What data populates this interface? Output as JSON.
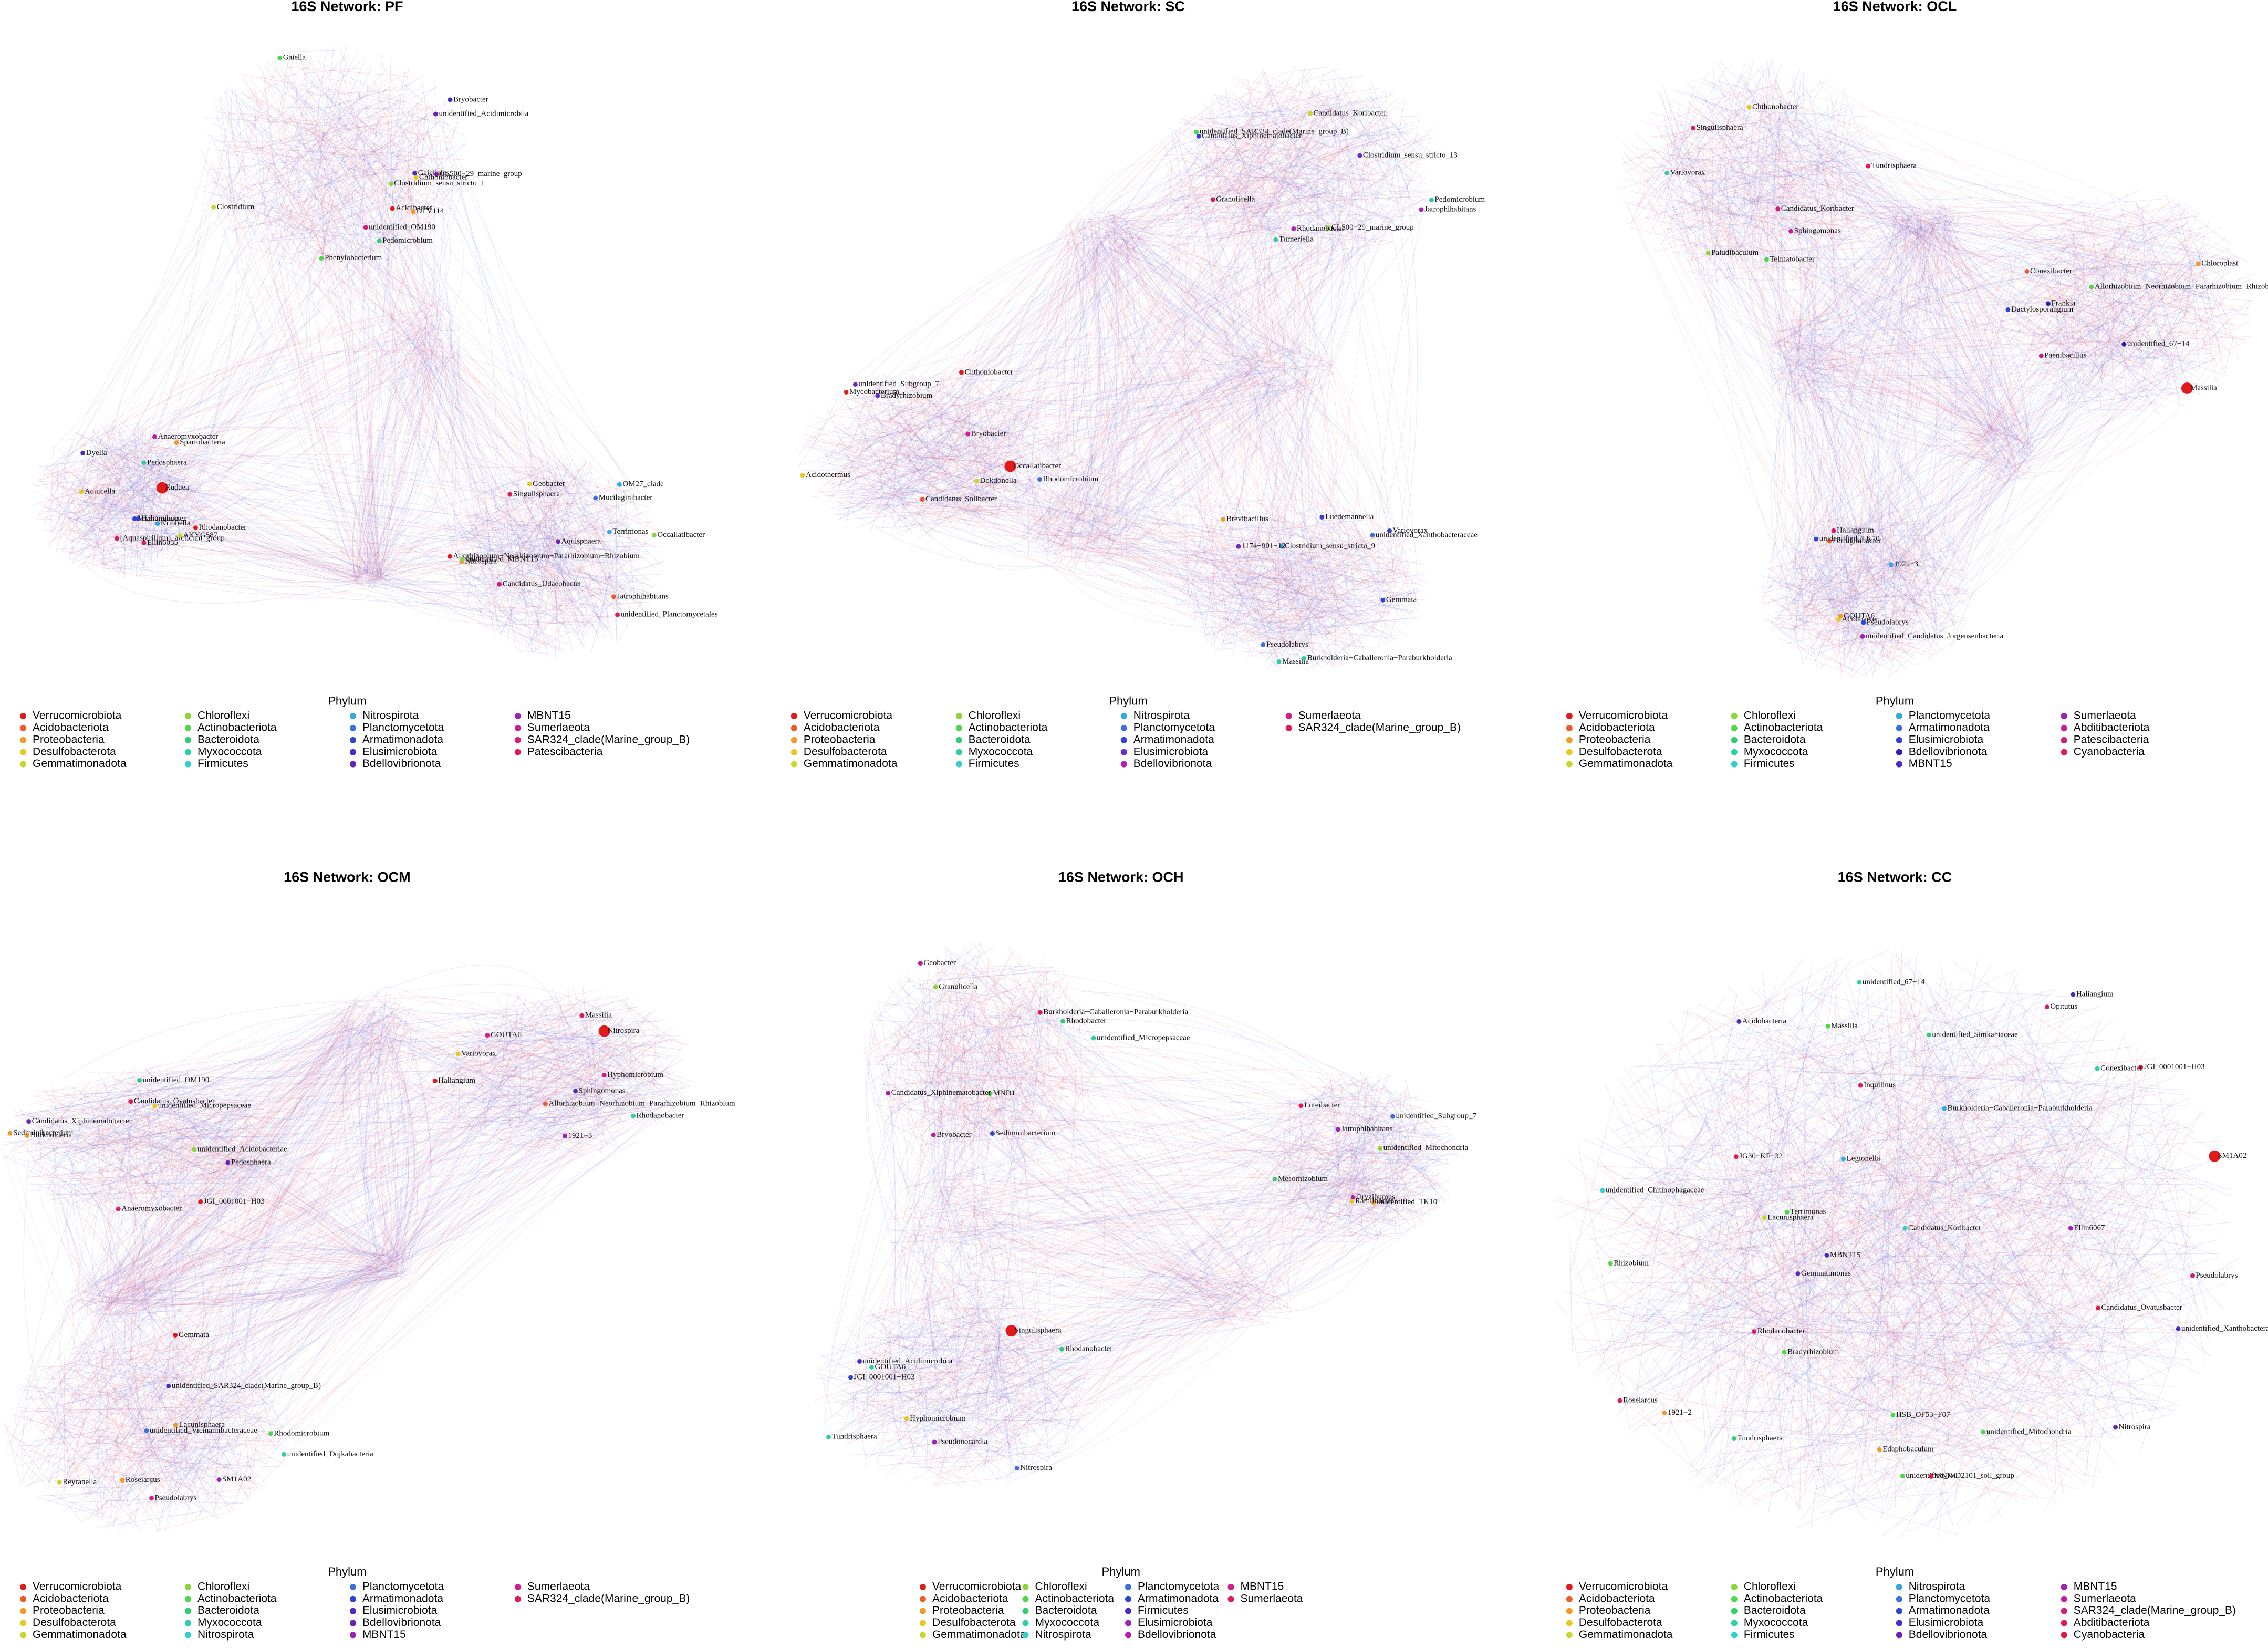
{
  "networks": [
    {
      "title": "16S Network: PF",
      "legend_title": "Phylum",
      "legend": [
        {
          "name": "Verrucomicrobiota",
          "color": "#e31a1c"
        },
        {
          "name": "Acidobacteriota",
          "color": "#f05a28"
        },
        {
          "name": "Proteobacteria",
          "color": "#f59a23"
        },
        {
          "name": "Desulfobacterota",
          "color": "#e8c81e"
        },
        {
          "name": "Gemmatimonadota",
          "color": "#c9d62b"
        },
        {
          "name": "Chloroflexi",
          "color": "#8cd63a"
        },
        {
          "name": "Actinobacteriota",
          "color": "#4fd64a"
        },
        {
          "name": "Bacteroidota",
          "color": "#2fcf70"
        },
        {
          "name": "Myxococcota",
          "color": "#2fcfa5"
        },
        {
          "name": "Firmicutes",
          "color": "#34cdd0"
        },
        {
          "name": "Nitrospirota",
          "color": "#34a8e0"
        },
        {
          "name": "Planctomycetota",
          "color": "#3a72dc"
        },
        {
          "name": "Armatimonadota",
          "color": "#3044d4"
        },
        {
          "name": "Elusimicrobiota",
          "color": "#4a2bc9"
        },
        {
          "name": "Bdellovibrionota",
          "color": "#6a22b8"
        },
        {
          "name": "MBNT15",
          "color": "#9c22b8"
        },
        {
          "name": "Sumerlaeota",
          "color": "#c21ea6"
        },
        {
          "name": "SAR324_clade(Marine_group_B)",
          "color": "#d81b7a"
        },
        {
          "name": "Patescibacteria",
          "color": "#de1a5a"
        }
      ],
      "nodes": [
        "Phenylobacterium",
        "Rudaea",
        "Singulisphaera",
        "Gaiella",
        "Haliangium",
        "Aquisphaera",
        "unidentified_OM190",
        "Vicinamibacter",
        "Jatrophihabitans",
        "Pedomicrobium",
        "Kribbella",
        "unidentified_Planctomycetales",
        "Clostridium_sensu_stricto_1",
        "Anaeromyxobacter",
        "Mucilaginibacter",
        "CL500−29_marine_group",
        "Rhodanobacter",
        "Occallatibacter",
        "Chthoniobacter",
        "[Aquaspirillum]_arcticum_group",
        "Candidatus_Udaeobacter",
        "unidentified_Acidimicrobiia",
        "Aquicella",
        "Geobacter",
        "Clostridium",
        "Ellin6055",
        "Allorhizobium−Neorhizobium−Pararhizobium−Rhizobium",
        "Gaiellales",
        "Pedosphaera",
        "Terrimonas",
        "Acidibacter",
        "Spartobacteria",
        "Nitrospira",
        "Bryobacter",
        "Dyella",
        "unidentified_MBNT15",
        "DEV114",
        "AKYG587",
        "OM27_clade"
      ]
    },
    {
      "title": "16S Network: SC",
      "legend_title": "Phylum",
      "legend": [
        {
          "name": "Verrucomicrobiota",
          "color": "#e31a1c"
        },
        {
          "name": "Acidobacteriota",
          "color": "#f05a28"
        },
        {
          "name": "Proteobacteria",
          "color": "#f59a23"
        },
        {
          "name": "Desulfobacterota",
          "color": "#e8c81e"
        },
        {
          "name": "Gemmatimonadota",
          "color": "#c9d62b"
        },
        {
          "name": "Chloroflexi",
          "color": "#8cd63a"
        },
        {
          "name": "Actinobacteriota",
          "color": "#4fd64a"
        },
        {
          "name": "Bacteroidota",
          "color": "#2fcf70"
        },
        {
          "name": "Myxococcota",
          "color": "#2fcfa5"
        },
        {
          "name": "Firmicutes",
          "color": "#34cdd0"
        },
        {
          "name": "Nitrospirota",
          "color": "#34a8e0"
        },
        {
          "name": "Planctomycetota",
          "color": "#3a72dc"
        },
        {
          "name": "Armatimonadota",
          "color": "#3044d4"
        },
        {
          "name": "Elusimicrobiota",
          "color": "#6a2bc9"
        },
        {
          "name": "Bdellovibrionota",
          "color": "#b022b8"
        },
        {
          "name": "Sumerlaeota",
          "color": "#d41e8c"
        },
        {
          "name": "SAR324_clade(Marine_group_B)",
          "color": "#de1a5a"
        }
      ],
      "nodes": [
        "Jatrophihabitans",
        "Occallatibacter",
        "Luedemannella",
        "CL500−29_marine_group",
        "Bryobacter",
        "unidentified_Xanthobacteraceae",
        "Candidatus_Koribacter",
        "Bradyrhizobium",
        "Clostridium_sensu_stricto_9",
        "Pedomicrobium",
        "Mycobacterium",
        "Massilia",
        "Rhodanobacter",
        "Dokdonella",
        "Burkholderia−Caballeronia−Paraburkholderia",
        "unidentified_SAR324_clade(Marine_group_B)",
        "Acidothermus",
        "Brevibacillus",
        "Turneriella",
        "Chthoniobacter",
        "Gemmata",
        "Granulicella",
        "Candidatus_Solibacter",
        "1174−901−12",
        "Candidatus_Xiphinematobacter",
        "Rhodomicrobium",
        "Variovorax",
        "Clostridium_sensu_stricto_13",
        "unidentified_Subgroup_7",
        "Pseudolabrys"
      ]
    },
    {
      "title": "16S Network: OCL",
      "legend_title": "Phylum",
      "legend": [
        {
          "name": "Verrucomicrobiota",
          "color": "#e31a1c"
        },
        {
          "name": "Acidobacteriota",
          "color": "#f05a28"
        },
        {
          "name": "Proteobacteria",
          "color": "#f59a23"
        },
        {
          "name": "Desulfobacterota",
          "color": "#e8c81e"
        },
        {
          "name": "Gemmatimonadota",
          "color": "#c9d62b"
        },
        {
          "name": "Chloroflexi",
          "color": "#8cd63a"
        },
        {
          "name": "Actinobacteriota",
          "color": "#4fd64a"
        },
        {
          "name": "Bacteroidota",
          "color": "#2fcf70"
        },
        {
          "name": "Myxococcota",
          "color": "#2fcfa5"
        },
        {
          "name": "Firmicutes",
          "color": "#34cdd0"
        },
        {
          "name": "Planctomycetota",
          "color": "#34a8e0"
        },
        {
          "name": "Armatimonadota",
          "color": "#3a72dc"
        },
        {
          "name": "Elusimicrobiota",
          "color": "#3044d4"
        },
        {
          "name": "Bdellovibrionota",
          "color": "#2a20b0"
        },
        {
          "name": "MBNT15",
          "color": "#4a2bc9"
        },
        {
          "name": "Sumerlaeota",
          "color": "#9c22b8"
        },
        {
          "name": "Abditibacteriota",
          "color": "#c21ea6"
        },
        {
          "name": "Patescibacteria",
          "color": "#d81b7a"
        },
        {
          "name": "Cyanobacteria",
          "color": "#de1a5a"
        }
      ],
      "nodes": [
        "Tundrisphaera",
        "Massilia",
        "Ferruginibacter",
        "Chthonobacter",
        "Allorhizobium−Neorhizobium−Pararhizobium−Rhizobium",
        "Haliangium",
        "Singulisphaera",
        "unidentified_67−14",
        "Acidibacter",
        "Candidatus_Koribacter",
        "Chloroplast",
        "unidentified_Candidatus_Jorgensenbacteria",
        "Sphingomonas",
        "Frankia",
        "1921−3",
        "Paludibaculum",
        "Conexibacter",
        "GOUTA6",
        "Telmatobacter",
        "Paenibacillus",
        "unidentified_TK10",
        "Variovorax",
        "Dactylosporangium",
        "Pseudolabrys"
      ]
    },
    {
      "title": "16S Network: OCM",
      "legend_title": "Phylum",
      "legend": [
        {
          "name": "Verrucomicrobiota",
          "color": "#e31a1c"
        },
        {
          "name": "Acidobacteriota",
          "color": "#f05a28"
        },
        {
          "name": "Proteobacteria",
          "color": "#f59a23"
        },
        {
          "name": "Desulfobacterota",
          "color": "#e8c81e"
        },
        {
          "name": "Gemmatimonadota",
          "color": "#c9d62b"
        },
        {
          "name": "Chloroflexi",
          "color": "#8cd63a"
        },
        {
          "name": "Actinobacteriota",
          "color": "#4fd64a"
        },
        {
          "name": "Bacteroidota",
          "color": "#2fcf70"
        },
        {
          "name": "Myxococcota",
          "color": "#2fcfa5"
        },
        {
          "name": "Nitrospirota",
          "color": "#34cdd0"
        },
        {
          "name": "Planctomycetota",
          "color": "#3a72dc"
        },
        {
          "name": "Armatimonadota",
          "color": "#3044d4"
        },
        {
          "name": "Elusimicrobiota",
          "color": "#4a2bc9"
        },
        {
          "name": "Bdellovibrionota",
          "color": "#6a22b8"
        },
        {
          "name": "MBNT15",
          "color": "#9c22b8"
        },
        {
          "name": "Sumerlaeota",
          "color": "#d41e8c"
        },
        {
          "name": "SAR324_clade(Marine_group_B)",
          "color": "#de1a5a"
        }
      ],
      "nodes": [
        "Pedosphaera",
        "Nitrospira",
        "Lacunisphaera",
        "JGI_0001001−H03",
        "Hyphomicrobium",
        "unidentified_Vicinamibacteraceae",
        "unidentified_Acidobacteriae",
        "Allorhizobium−Neorhizobium−Pararhizobium−Rhizobium",
        "unidentified_Dojkabacteria",
        "unidentified_OM190",
        "Rhodanobacter",
        "Rhodomicrobium",
        "Burkholderia",
        "Sphingomonas",
        "Reyranella",
        "Anaeromyxobacter",
        "Massilia",
        "SM1A02",
        "Candidatus_Xiphinematobacter",
        "Variovorax",
        "unidentified_SAR324_clade(Marine_group_B)",
        "Candidatus_Ovatusbacter",
        "GOUTA6",
        "Pseudolabrys",
        "unidentified_Micropepsaceae",
        "1921−3",
        "Gemmata",
        "Sediminibacterium",
        "Haliangium",
        "Roseiarcus"
      ]
    },
    {
      "title": "16S Network: OCH",
      "legend_title": "Phylum",
      "legend": [
        {
          "name": "Verrucomicrobiota",
          "color": "#e31a1c"
        },
        {
          "name": "Acidobacteriota",
          "color": "#f05a28"
        },
        {
          "name": "Proteobacteria",
          "color": "#f59a23"
        },
        {
          "name": "Desulfobacterota",
          "color": "#e8c81e"
        },
        {
          "name": "Gemmatimonadota",
          "color": "#c9d62b"
        },
        {
          "name": "Chloroflexi",
          "color": "#8cd63a"
        },
        {
          "name": "Actinobacteriota",
          "color": "#4fd64a"
        },
        {
          "name": "Bacteroidota",
          "color": "#2fcf70"
        },
        {
          "name": "Myxococcota",
          "color": "#2fcfa5"
        },
        {
          "name": "Nitrospirota",
          "color": "#34cdd0"
        },
        {
          "name": "Planctomycetota",
          "color": "#3a72dc"
        },
        {
          "name": "Armatimonadota",
          "color": "#3044d4"
        },
        {
          "name": "Firmicutes",
          "color": "#4a2bc9"
        },
        {
          "name": "Elusimicrobiota",
          "color": "#9c22b8"
        },
        {
          "name": "Bdellovibrionota",
          "color": "#b61eaa"
        },
        {
          "name": "MBNT15",
          "color": "#d41e8c"
        },
        {
          "name": "Sumerlaeota",
          "color": "#de1a5a"
        }
      ],
      "nodes": [
        "Geobacter",
        "Singulisphaera",
        "Oryzihumus",
        "Burkholderia−Caballeronia−Paraburkholderia",
        "Hyphomicrobium",
        "Jatrophihabitans",
        "Granulicella",
        "unidentified_Acidimicrobiia",
        "Mesorhizobium",
        "Bryobacter",
        "Nitrospira",
        "unidentified_Mitochondria",
        "MND1",
        "GOUTA6",
        "unidentified_TK10",
        "Candidatus_Xiphinematobacter",
        "Pseudonocardia",
        "unidentified_Subgroup_7",
        "Rhodobacter",
        "JGI_0001001−H03",
        "Ramlibacter",
        "Sediminibacterium",
        "Rhodanobacter",
        "Luteibacter",
        "unidentified_Micropepsaceae",
        "Tundrisphaera"
      ]
    },
    {
      "title": "16S Network: CC",
      "legend_title": "Phylum",
      "legend": [
        {
          "name": "Verrucomicrobiota",
          "color": "#e31a1c"
        },
        {
          "name": "Acidobacteriota",
          "color": "#f05a28"
        },
        {
          "name": "Proteobacteria",
          "color": "#f59a23"
        },
        {
          "name": "Desulfobacterota",
          "color": "#e8c81e"
        },
        {
          "name": "Gemmatimonadota",
          "color": "#c9d62b"
        },
        {
          "name": "Chloroflexi",
          "color": "#8cd63a"
        },
        {
          "name": "Actinobacteriota",
          "color": "#4fd64a"
        },
        {
          "name": "Bacteroidota",
          "color": "#2fcf70"
        },
        {
          "name": "Myxococcota",
          "color": "#2fcfa5"
        },
        {
          "name": "Firmicutes",
          "color": "#34cdd0"
        },
        {
          "name": "Nitrospirota",
          "color": "#34a8e0"
        },
        {
          "name": "Planctomycetota",
          "color": "#3a72dc"
        },
        {
          "name": "Armatimonadota",
          "color": "#3044d4"
        },
        {
          "name": "Elusimicrobiota",
          "color": "#4a2bc9"
        },
        {
          "name": "Bdellovibrionota",
          "color": "#6a22b8"
        },
        {
          "name": "MBNT15",
          "color": "#9c22b8"
        },
        {
          "name": "Sumerlaeota",
          "color": "#c21ea6"
        },
        {
          "name": "SAR324_clade(Marine_group_B)",
          "color": "#d81b7a"
        },
        {
          "name": "Abditibacteriota",
          "color": "#de1a5a"
        },
        {
          "name": "Cyanobacteria",
          "color": "#e01a40"
        }
      ],
      "nodes": [
        "Pseudolabrys",
        "SM1A02",
        "Edaphobaculum",
        "Lacunisphaera",
        "Terrimonas",
        "Gemmatimonas",
        "Rhodanobacter",
        "Candidatus_Ovatusbacter",
        "JGI_0001001−H03",
        "Haliangium",
        "Massilia",
        "Rhizobium",
        "unidentified_Xanthobacteraceae",
        "Bradyrhizobium",
        "Inquilinus",
        "HSB_OF53−F07",
        "Ellin6067",
        "Acidobacteria",
        "unidentified_WD2101_soil_group",
        "MBNT15",
        "MND1",
        "Roseiarcus",
        "unidentified_67−14",
        "unidentified_Mitochondria",
        "Legionella",
        "1921−2",
        "Opitutus",
        "Nitrospira",
        "Burkholderia−Caballeronia−Paraburkholderia",
        "Candidatus_Koribacter",
        "unidentified_Simkaniaceae",
        "JG30−KF−32",
        "Tundrisphaera",
        "Conexibacter",
        "unidentified_Chitinophagaceae"
      ]
    }
  ]
}
